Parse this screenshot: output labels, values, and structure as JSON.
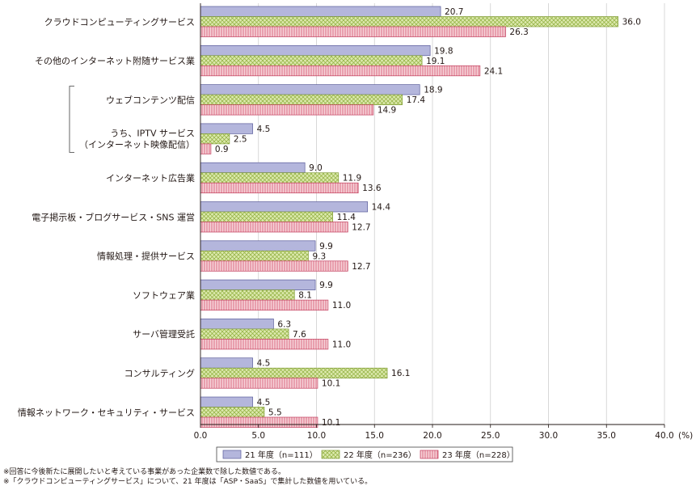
{
  "chart_data": {
    "type": "bar",
    "orientation": "horizontal",
    "categories": [
      "クラウドコンピューティングサービス",
      "その他のインターネット附随サービス業",
      "ウェブコンテンツ配信",
      "うち、IPTV サービス\n（インターネット映像配信）",
      "インターネット広告業",
      "電子掲示板・ブログサービス・SNS 運営",
      "情報処理・提供サービス",
      "ソフトウェア業",
      "サーバ管理受託",
      "コンサルティング",
      "情報ネットワーク・セキュリティ・サービス"
    ],
    "series": [
      {
        "name": "21 年度（n=111）",
        "values": [
          20.7,
          19.8,
          18.9,
          4.5,
          9.0,
          14.4,
          9.9,
          9.9,
          6.3,
          4.5,
          4.5
        ],
        "color": "#b4b6dc",
        "pattern": "solid"
      },
      {
        "name": "22 年度（n=236）",
        "values": [
          36.0,
          19.1,
          17.4,
          2.5,
          11.9,
          11.4,
          9.3,
          8.1,
          7.6,
          16.1,
          5.5
        ],
        "color": "#d5e69c",
        "pattern": "crosshatch"
      },
      {
        "name": "23 年度（n=228）",
        "values": [
          26.3,
          24.1,
          14.9,
          0.9,
          13.6,
          12.7,
          12.7,
          11.0,
          11.0,
          10.1,
          10.1
        ],
        "color": "#f1b6c0",
        "pattern": "vertical-lines"
      }
    ],
    "value_labels": [
      [
        "20.7",
        "19.8",
        "18.9",
        "4.5",
        "9.0",
        "14.4",
        "9.9",
        "9.9",
        "6.3",
        "4.5",
        "4.5"
      ],
      [
        "36.0",
        "19.1",
        "17.4",
        "2.5",
        "11.9",
        "11.4",
        "9.3",
        "8.1",
        "7.6",
        "16.1",
        "5.5"
      ],
      [
        "26.3",
        "24.1",
        "14.9",
        "0.9",
        "13.6",
        "12.7",
        "12.7",
        "11.0",
        "11.0",
        "10.1",
        "10.1"
      ]
    ],
    "xlim": [
      0,
      40
    ],
    "xticks": [
      "0.0",
      "5.0",
      "10.0",
      "15.0",
      "20.0",
      "25.0",
      "30.0",
      "35.0",
      "40.0"
    ],
    "unit_label": "(%)",
    "grid": "vertical",
    "legend_position": "bottom-center",
    "bracket_group": [
      2,
      3
    ]
  },
  "notes": [
    "※回答に今後新たに展開したいと考えている事業があった企業数で除した数値である。",
    "※「クラウドコンピューティングサービス」について、21 年度は「ASP・SaaS」で集計した数値を用いている。"
  ]
}
